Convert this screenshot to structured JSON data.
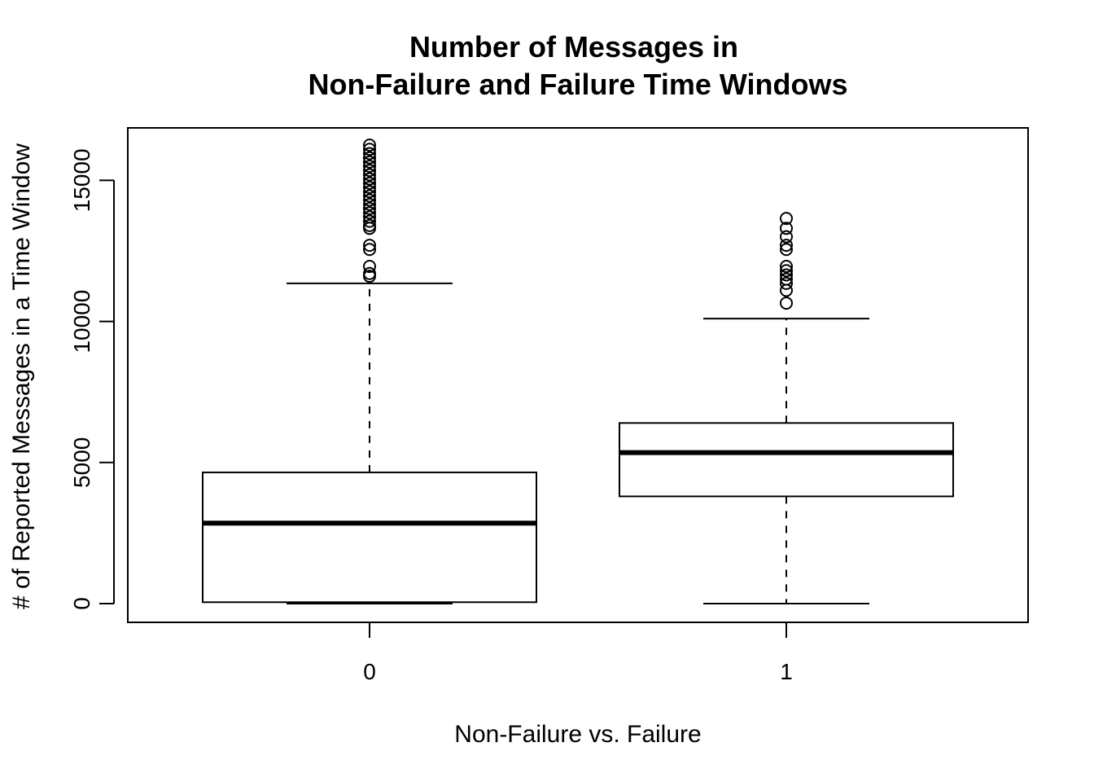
{
  "chart_data": {
    "type": "boxplot",
    "title_lines": [
      "Number of Messages in",
      "Non-Failure and Failure Time Windows"
    ],
    "xlabel": "Non-Failure vs. Failure",
    "ylabel": "# of Reported Messages in a Time Window",
    "categories": [
      "0",
      "1"
    ],
    "ylim": [
      -600,
      16900
    ],
    "y_ticks": [
      0,
      5000,
      10000,
      15000
    ],
    "y_tick_labels": [
      "0",
      "5000",
      "10000",
      "15000"
    ],
    "boxes": [
      {
        "category": "0",
        "whisker_low": 0,
        "q1": 50,
        "median": 2850,
        "q3": 4650,
        "whisker_high": 11350,
        "outliers": [
          11600,
          11700,
          11950,
          12550,
          12700,
          13300,
          13400,
          13550,
          13700,
          13850,
          14000,
          14150,
          14300,
          14450,
          14600,
          14750,
          14900,
          15050,
          15200,
          15350,
          15500,
          15650,
          15800,
          15950,
          16100,
          16250
        ]
      },
      {
        "category": "1",
        "whisker_low": 0,
        "q1": 3800,
        "median": 5350,
        "q3": 6400,
        "whisker_high": 10100,
        "outliers": [
          10650,
          11100,
          11350,
          11500,
          11650,
          11800,
          11950,
          12550,
          12700,
          13000,
          13300,
          13650
        ]
      }
    ],
    "grid": false,
    "legend": "none"
  }
}
